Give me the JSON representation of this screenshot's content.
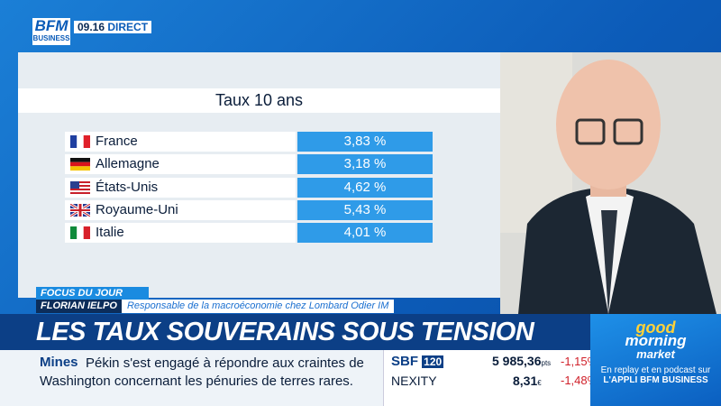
{
  "header": {
    "logo_top": "BFM",
    "logo_bottom": "BUSINESS",
    "time": "09.16",
    "live": "DIRECT"
  },
  "table": {
    "title": "Taux 10 ans",
    "rows": [
      [
        "France",
        "3,83 %"
      ],
      [
        "Allemagne",
        "3,18 %"
      ],
      [
        "États-Unis",
        "4,62 %"
      ],
      [
        "Royaume-Uni",
        "5,43 %"
      ],
      [
        "Italie",
        "4,01 %"
      ]
    ]
  },
  "lower_third": {
    "tag": "FOCUS DU JOUR",
    "guest": "FLORIAN IELPO",
    "role": "Responsable de la macroéconomie chez Lombard Odier IM",
    "headline": "LES TAUX SOUVERAINS SOUS TENSION"
  },
  "ticker": {
    "label": "Mines",
    "lines": [
      "Pékin s'est engagé à répondre aux craintes de",
      "Washington concernant les pénuries de terres rares."
    ]
  },
  "markets": [
    {
      "name": "SBF",
      "badge": "120",
      "value": "5 985,36",
      "unit": "pts",
      "change": "-1,15%"
    },
    {
      "name": "NEXITY",
      "value": "8,31",
      "unit": "€",
      "change": "-1,48%"
    }
  ],
  "promo": {
    "logo": [
      "good",
      "morning",
      "market"
    ],
    "lines": [
      "En replay et en podcast sur",
      "L'APPLI BFM BUSINESS"
    ]
  }
}
